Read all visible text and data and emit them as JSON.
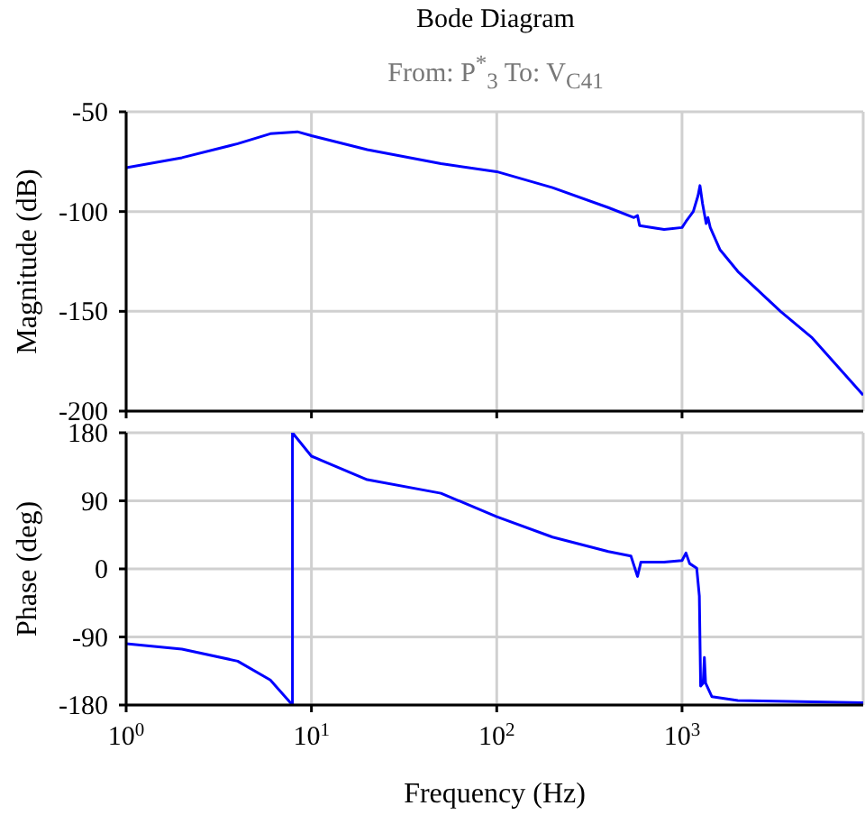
{
  "chart_data": [
    {
      "type": "line",
      "title": "Bode Diagram",
      "subtitle": "From: P$^{*}$$_{3}$  To: V$_{C41}$",
      "ylabel": "Magnitude (dB)",
      "xlim": [
        1,
        9500
      ],
      "xticks": [
        1,
        10,
        100,
        1000
      ],
      "ylim": [
        -200,
        -50
      ],
      "yticks": [
        -200,
        -150,
        -100,
        -50
      ],
      "log": "x",
      "grid": true,
      "tick_labels": "y",
      "series": [
        {
          "color": "#0000ff",
          "x": [
            1,
            2,
            4,
            6,
            8.4,
            10,
            20,
            50,
            100,
            200,
            400,
            550,
            575,
            590,
            800,
            1000,
            1050,
            1150,
            1220,
            1250,
            1290,
            1350,
            1380,
            1420,
            1600,
            2000,
            3400,
            5000,
            9500
          ],
          "values": [
            -78,
            -73,
            -66,
            -61,
            -60,
            -62,
            -69,
            -76,
            -80,
            -88,
            -98,
            -103,
            -102,
            -107,
            -109,
            -108,
            -105,
            -100,
            -92,
            -87,
            -96,
            -106,
            -103,
            -108,
            -119,
            -130,
            -150,
            -163,
            -192
          ]
        }
      ]
    },
    {
      "type": "line",
      "ylabel": "Phase (deg)",
      "xlabel": "Frequency  (Hz)",
      "xlim": [
        1,
        9500
      ],
      "xticks": [
        {
          "value": 1,
          "label": "10$^{0}$"
        },
        {
          "value": 10,
          "label": "10$^{1}$"
        },
        {
          "value": 100,
          "label": "10$^{2}$"
        },
        {
          "value": 1000,
          "label": "10$^{3}$"
        }
      ],
      "ylim": [
        -180,
        180
      ],
      "yticks": [
        -180,
        -90,
        0,
        90,
        180
      ],
      "log": "x",
      "grid": true,
      "series": [
        {
          "color": "#0000ff",
          "x": [
            1,
            2,
            4,
            6,
            7.9,
            7.9,
            10,
            20,
            50,
            100,
            200,
            400,
            530,
            575,
            600,
            800,
            1000,
            1050,
            1100,
            1200,
            1240,
            1260,
            1300,
            1320,
            1340,
            1450,
            2000,
            9500
          ],
          "values": [
            -99,
            -106,
            -122,
            -147,
            -180,
            180,
            149,
            118,
            100,
            69,
            42,
            23,
            17,
            -10,
            9,
            9,
            11,
            21,
            7,
            1,
            -36,
            -155,
            -151,
            -117,
            -151,
            -169,
            -174,
            -177
          ]
        }
      ]
    }
  ]
}
